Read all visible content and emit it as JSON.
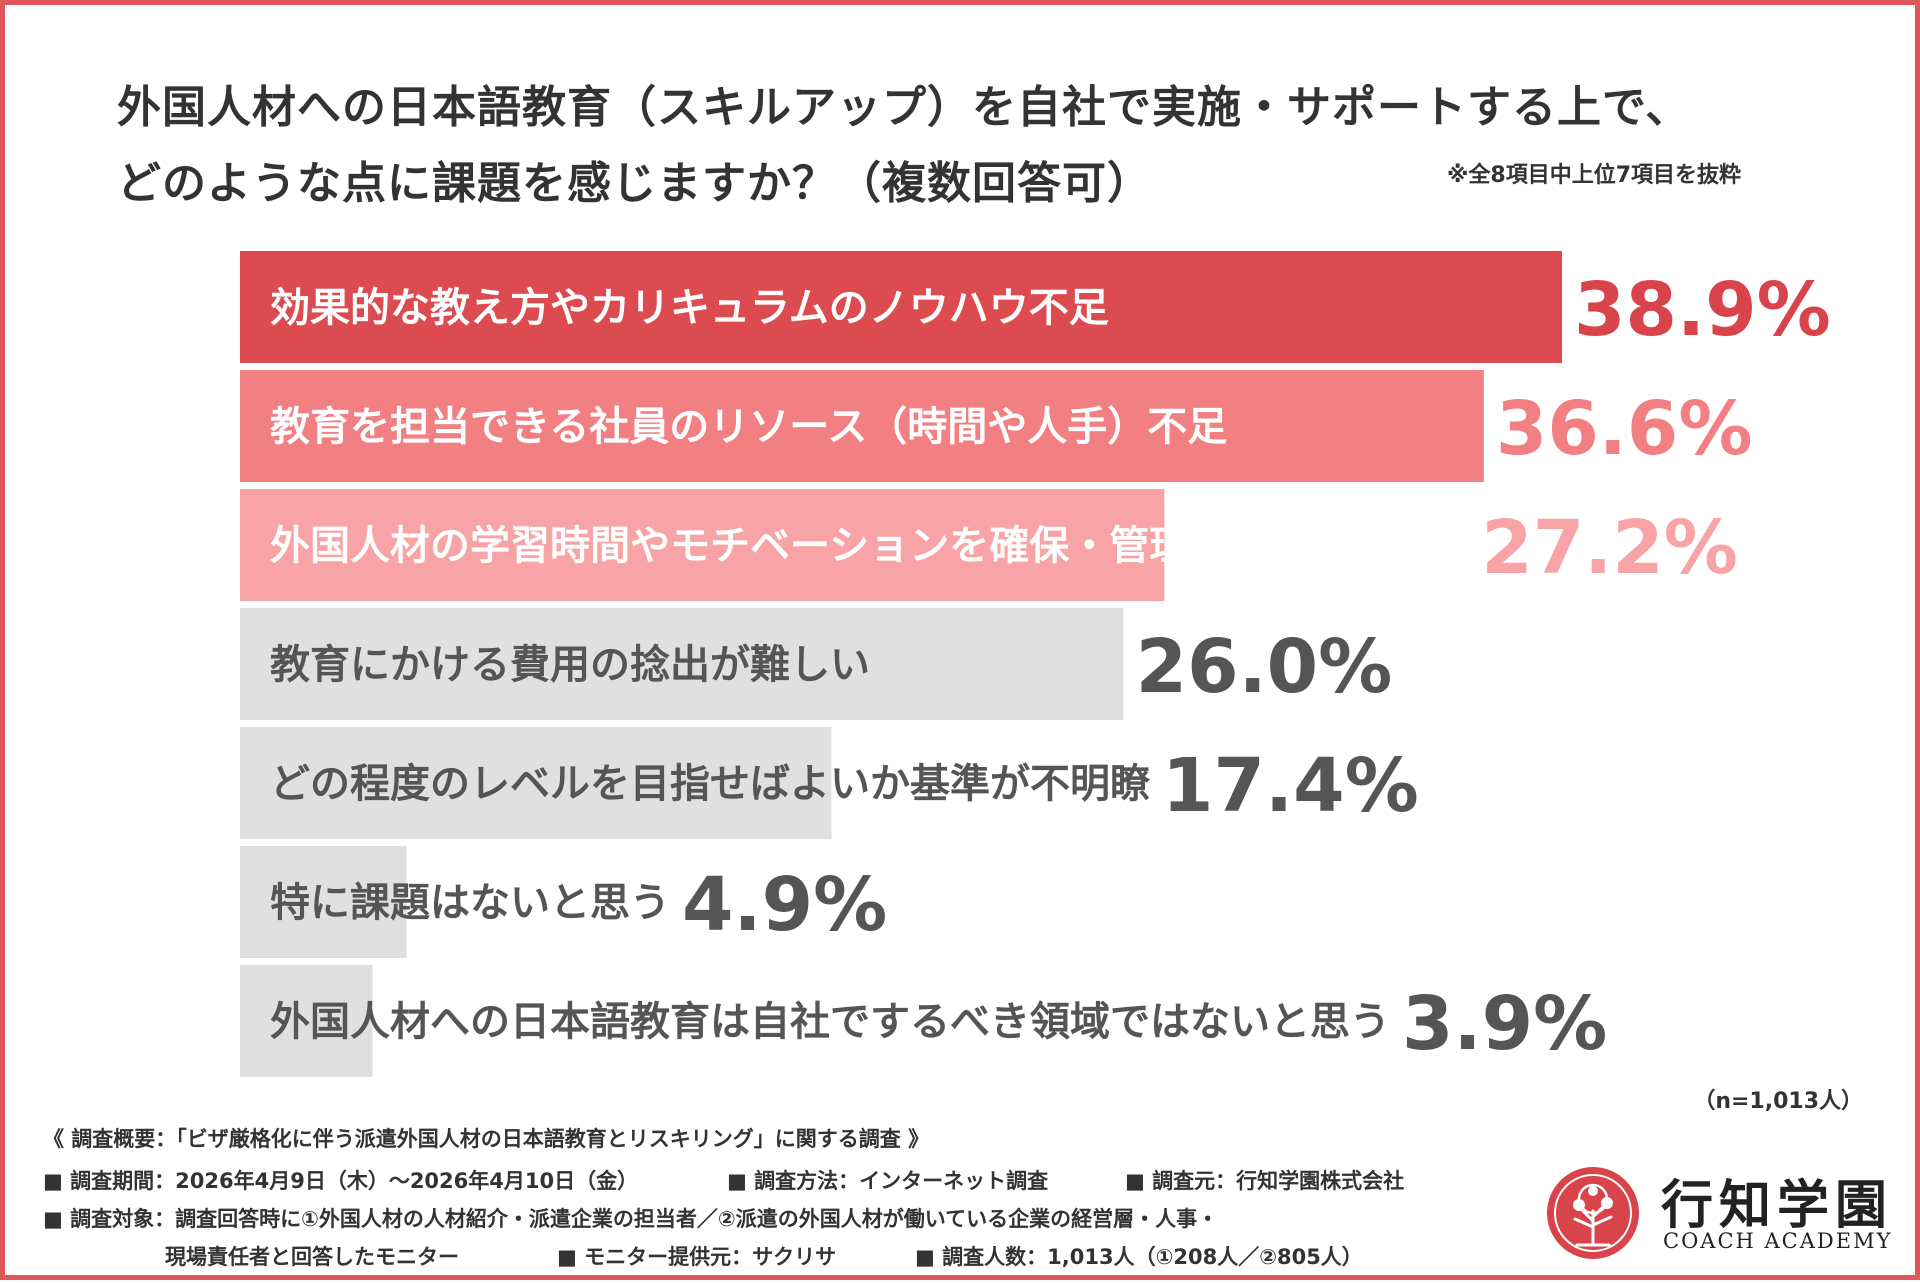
{
  "title_line1": "外国人材への日本語教育（スキルアップ）を自社で実施・サポートする上で、",
  "title_line2": "どのような点に課題を感じますか？（複数回答可）",
  "note": "※全8項目中上位7項目を抜粋",
  "sample_size": "（n=1,013人）",
  "chart_data": {
    "type": "bar",
    "orientation": "horizontal",
    "categories": [
      "効果的な教え方やカリキュラムのノウハウ不足",
      "教育を担当できる社員のリソース（時間や人手）不足",
      "外国人材の学習時間やモチベーションを確保・管理するのが難しい",
      "教育にかける費用の捻出が難しい",
      "どの程度のレベルを目指せばよいか基準が不明瞭",
      "特に課題はないと思う",
      "外国人材への日本語教育は自社でするべき領域ではないと思う"
    ],
    "values": [
      38.9,
      36.6,
      27.2,
      26.0,
      17.4,
      4.9,
      3.9
    ],
    "value_labels": [
      "38.9%",
      "36.6%",
      "27.2%",
      "26.0%",
      "17.4%",
      "4.9%",
      "3.9%"
    ],
    "xlim": [
      0,
      38.9
    ],
    "grid": false,
    "legend": "none",
    "bar_colors": [
      "#dc4b50",
      "#f27f82",
      "#f8a3a5",
      "#e0e0e0",
      "#e0e0e0",
      "#e0e0e0",
      "#e0e0e0"
    ],
    "value_colors": [
      "#d9434a",
      "#f27f82",
      "#f8a3a5",
      "#555555",
      "#555555",
      "#555555",
      "#555555"
    ]
  },
  "footnotes": {
    "summary": "《 調査概要：「ビザ厳格化に伴う派遣外国人材の日本語教育とリスキリング」に関する調査 》",
    "period": "■ 調査期間：2026年4月9日（木）～2026年4月10日（金）",
    "method": "■ 調査方法：インターネット調査",
    "source": "■ 調査元：行知学園株式会社",
    "target_line1": "■ 調査対象：調査回答時に①外国人材の人材紹介・派遣企業の担当者／②派遣の外国人材が働いている企業の経営層・人事・",
    "target_line2": "現場責任者と回答したモニター",
    "provider": "■ モニター提供元：サクリサ",
    "count": "■ 調査人数：1,013人（①208人／②805人）"
  },
  "logo": {
    "name_jp": "行知学園",
    "name_en": "COACH ACADEMY",
    "icon": "tree-seal-icon",
    "color": "#d9434a"
  }
}
